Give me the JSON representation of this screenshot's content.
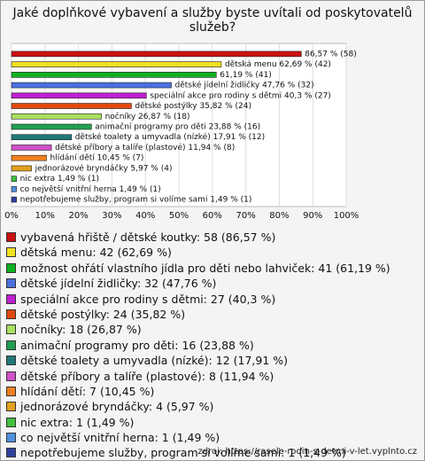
{
  "chart_data": {
    "type": "hbar",
    "title": "Jaké doplňkové vybavení a služby byste uvítali od poskytovatelů služeb?",
    "values": [
      86.57,
      62.69,
      61.19,
      47.76,
      40.3,
      35.82,
      26.87,
      23.88,
      17.91,
      11.94,
      10.45,
      5.97,
      1.49,
      1.49,
      1.49
    ],
    "value_labels": [
      "86,57 % (58)",
      "dětská menu 62,69 % (42)",
      "61,19 % (41)",
      "dětské jídelní židličky 47,76 % (32)",
      "speciální akce pro rodiny s dětmi 40,3 % (27)",
      "dětské postýlky 35,82 % (24)",
      "nočníky 26,87 % (18)",
      "animační programy pro děti 23,88 % (16)",
      "dětské toalety a umyvadla (nízké) 17,91 % (12)",
      "dětské příbory a talíře (plastové) 11,94 % (8)",
      "hlídání dětí 10,45 % (7)",
      "jednorázové bryndáčky 5,97 % (4)",
      "nic extra 1,49 % (1)",
      "co největší vnitřní herna 1,49 % (1)",
      "nepotřebujeme služby, program si volíme sami 1,49 % (1)"
    ],
    "colors": [
      "#cc1010",
      "#f0e020",
      "#10b020",
      "#4a70e0",
      "#c020d0",
      "#e04a10",
      "#a8e060",
      "#20a050",
      "#207878",
      "#d050c8",
      "#f08020",
      "#e0a020",
      "#40c040",
      "#5090e0",
      "#3040a0"
    ],
    "legend": [
      "vybavená hřiště / dětské koutky: 58 (86,57 %)",
      "dětská menu: 42 (62,69 %)",
      "možnost ohřátí vlastního jídla pro děti nebo lahviček: 41 (61,19 %)",
      "dětské jídelní židličky: 32 (47,76 %)",
      "speciální akce pro rodiny s dětmi: 27 (40,3 %)",
      "dětské postýlky: 24 (35,82 %)",
      "nočníky: 18 (26,87 %)",
      "animační programy pro děti: 16 (23,88 %)",
      "dětské toalety a umyvadla (nízké): 12 (17,91 %)",
      "dětské příbory a talíře (plastové): 8 (11,94 %)",
      "hlídání dětí: 7 (10,45 %)",
      "jednorázové bryndáčky: 4 (5,97 %)",
      "nic extra: 1 (1,49 %)",
      "co největší vnitřní herna: 1 (1,49 %)",
      "nepotřebujeme služby, program si volíme sami: 1 (1,49 %)"
    ],
    "xlim": [
      0,
      100
    ],
    "xticks": [
      {
        "value": 0,
        "label": "0%"
      },
      {
        "value": 10,
        "label": "10%"
      },
      {
        "value": 20,
        "label": "20%"
      },
      {
        "value": 30,
        "label": "30%"
      },
      {
        "value": 40,
        "label": "40%"
      },
      {
        "value": 50,
        "label": "50%"
      },
      {
        "value": 60,
        "label": "60%"
      },
      {
        "value": 70,
        "label": "70%"
      },
      {
        "value": 80,
        "label": "80%"
      },
      {
        "value": 90,
        "label": "90%"
      },
      {
        "value": 100,
        "label": "100%"
      }
    ],
    "grid": true,
    "source": "zdroj: https://rasele-rodin-s-detmi-v-let.vyplnto.cz"
  }
}
